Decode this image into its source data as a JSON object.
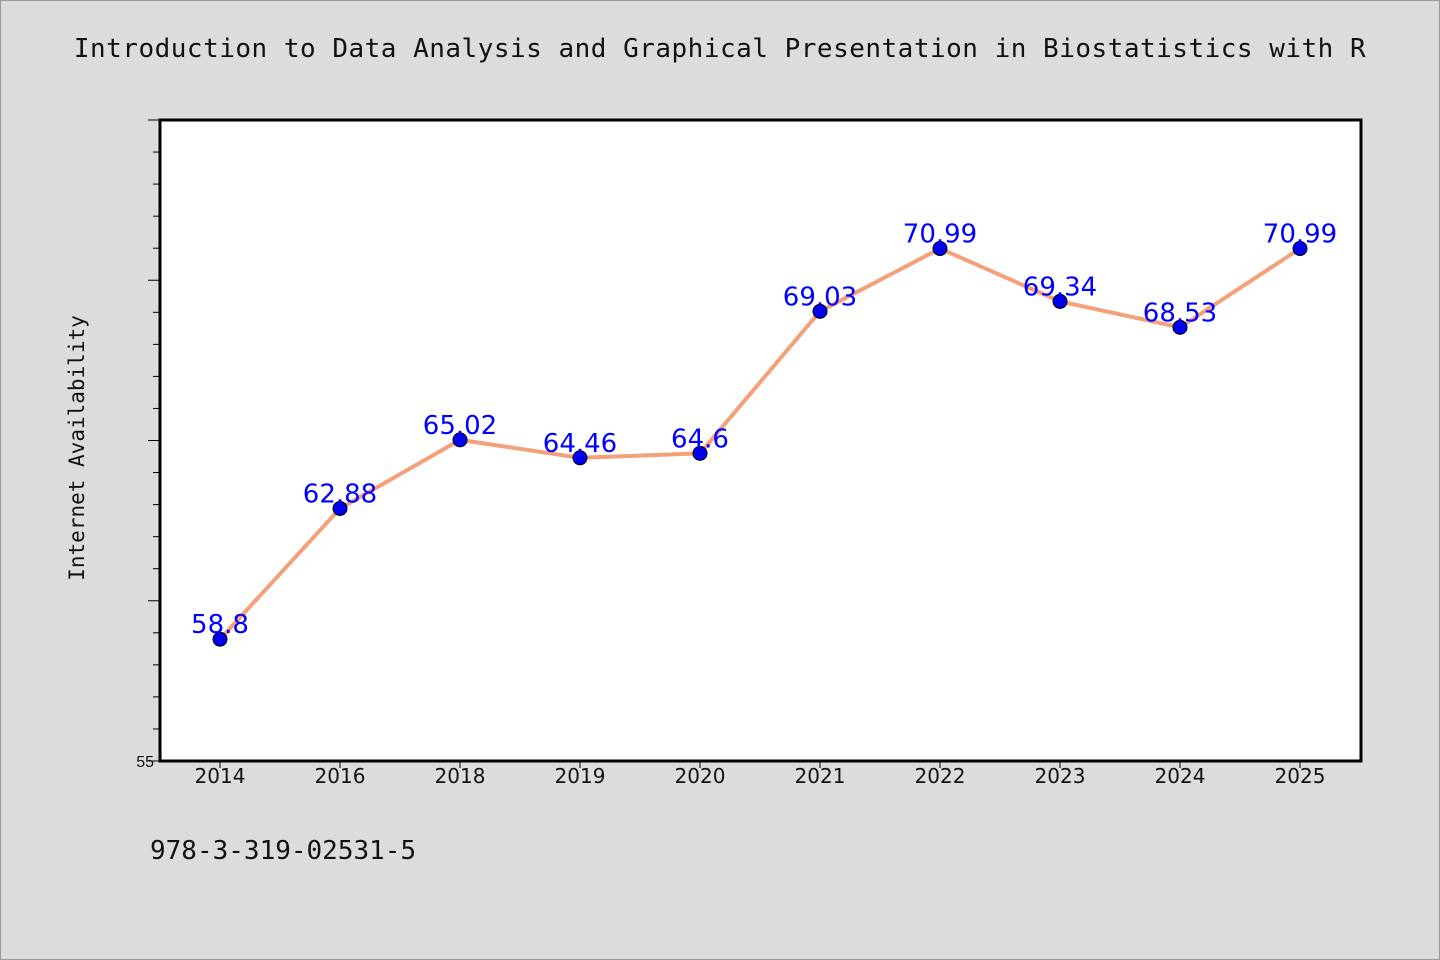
{
  "chart_data": {
    "type": "line",
    "title": "Introduction to Data Analysis and Graphical Presentation in Biostatistics with R",
    "xlabel": "",
    "ylabel": "Internet Availability",
    "categories": [
      "2014",
      "2016",
      "2018",
      "2019",
      "2020",
      "2021",
      "2022",
      "2023",
      "2024",
      "2025"
    ],
    "series": [
      {
        "values": [
          58.8,
          62.88,
          65.02,
          64.46,
          64.6,
          69.03,
          70.99,
          69.34,
          68.53,
          70.99
        ],
        "data_labels": [
          "58.8",
          "62.88",
          "65.02",
          "64.46",
          "64.6",
          "69.03",
          "70.99",
          "69.34",
          "68.53",
          "70.99"
        ],
        "line_color": "#f4a07a",
        "marker_color": "#0000ee",
        "label_color": "#0000ff"
      }
    ],
    "ylim": [
      55,
      75
    ],
    "y_tick_labels": [
      "55"
    ],
    "grid": false,
    "legend": "none"
  },
  "footer": {
    "isbn": "978-3-319-02531-5"
  },
  "colors": {
    "background": "#dcdcdc",
    "plot_area": "#ffffff",
    "axis": "#000000"
  }
}
